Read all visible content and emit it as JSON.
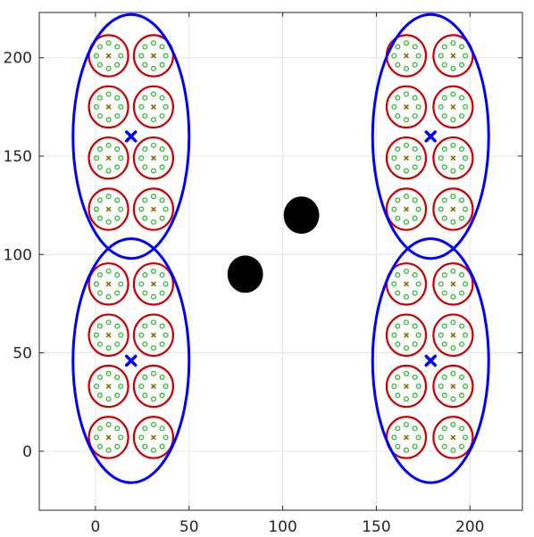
{
  "chart_data": {
    "type": "scatter",
    "title": "",
    "xlabel": "",
    "ylabel": "",
    "xlim": [
      -30,
      228
    ],
    "ylim": [
      -30,
      223
    ],
    "xticks": [
      0,
      50,
      100,
      150,
      200
    ],
    "yticks": [
      0,
      50,
      100,
      150,
      200
    ],
    "xtick_labels": [
      "0",
      "50",
      "100",
      "150",
      "200"
    ],
    "ytick_labels": [
      "0",
      "50",
      "100",
      "150",
      "200"
    ],
    "grid": true,
    "legend": "none",
    "colors": {
      "cluster_ellipse": "#0000ff",
      "cluster_center": "#0000ff",
      "group_circle": "#cc0000",
      "member_point": "#33bb33",
      "group_center": "#8a6a00",
      "obstacle": "#000000",
      "grid": "#e6e6e6",
      "axes": "#262626"
    },
    "clusters": [
      {
        "center": [
          19,
          160
        ],
        "semi_axes": [
          31,
          62
        ]
      },
      {
        "center": [
          19,
          46
        ],
        "semi_axes": [
          31,
          62
        ]
      },
      {
        "center": [
          179,
          160
        ],
        "semi_axes": [
          31,
          62
        ]
      },
      {
        "center": [
          179,
          46
        ],
        "semi_axes": [
          31,
          62
        ]
      }
    ],
    "group_circle_radius": 10.5,
    "member_offset_radius": 6.5,
    "members_per_group": 8,
    "group_centers": [
      [
        7,
        201
      ],
      [
        31,
        201
      ],
      [
        7,
        175
      ],
      [
        31,
        175
      ],
      [
        7,
        149
      ],
      [
        31,
        149
      ],
      [
        7,
        123
      ],
      [
        31,
        123
      ],
      [
        7,
        85
      ],
      [
        31,
        85
      ],
      [
        7,
        59
      ],
      [
        31,
        59
      ],
      [
        7,
        33
      ],
      [
        31,
        33
      ],
      [
        7,
        7
      ],
      [
        31,
        7
      ],
      [
        166,
        201
      ],
      [
        191,
        201
      ],
      [
        166,
        175
      ],
      [
        191,
        175
      ],
      [
        166,
        149
      ],
      [
        191,
        149
      ],
      [
        166,
        123
      ],
      [
        191,
        123
      ],
      [
        166,
        85
      ],
      [
        191,
        85
      ],
      [
        166,
        59
      ],
      [
        191,
        59
      ],
      [
        166,
        33
      ],
      [
        191,
        33
      ],
      [
        166,
        7
      ],
      [
        191,
        7
      ]
    ],
    "obstacles": [
      {
        "center": [
          80,
          90
        ],
        "radius": 9.5
      },
      {
        "center": [
          110,
          120
        ],
        "radius": 9.5
      }
    ]
  }
}
